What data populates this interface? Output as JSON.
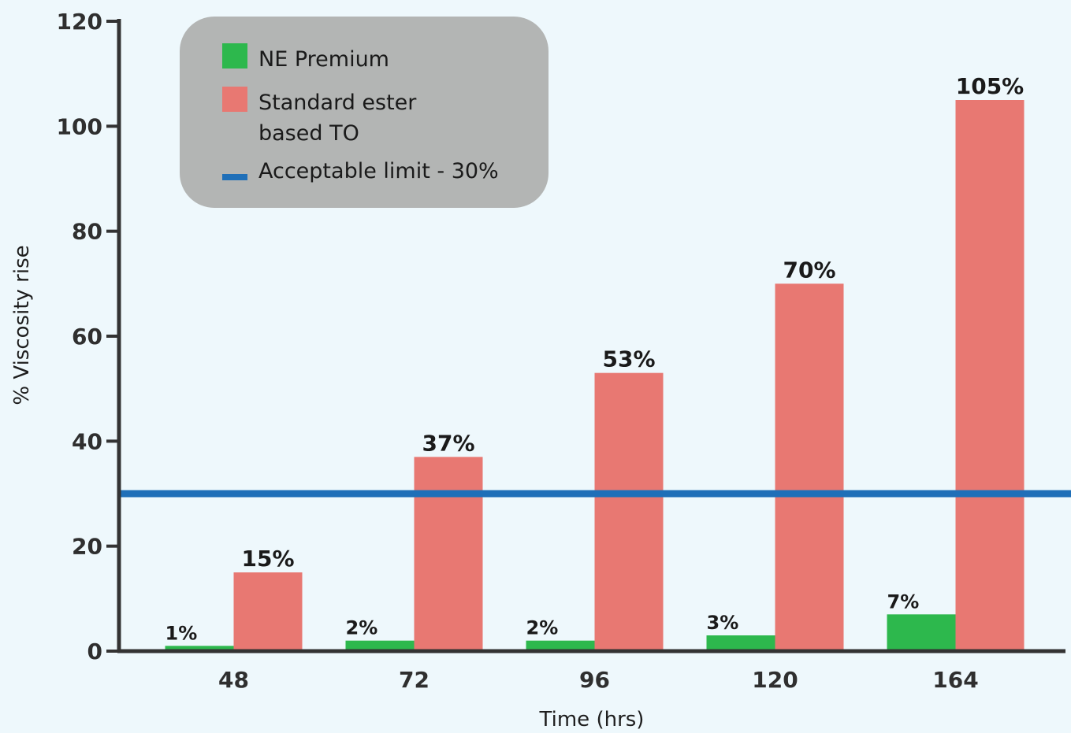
{
  "chart_data": {
    "type": "bar",
    "xlabel": "Time (hrs)",
    "ylabel": "% Viscosity rise",
    "categories": [
      "48",
      "72",
      "96",
      "120",
      "164"
    ],
    "ylim": [
      0,
      120
    ],
    "yticks": [
      0,
      20,
      40,
      60,
      80,
      100,
      120
    ],
    "grid": false,
    "legend_position": "top-left",
    "series": [
      {
        "name": "NE Premium",
        "color": "#2db84d",
        "values": [
          1,
          2,
          2,
          3,
          7
        ],
        "value_labels": [
          "1%",
          "2%",
          "2%",
          "3%",
          "7%"
        ]
      },
      {
        "name": "Standard ester based TO",
        "name_lines": [
          "Standard ester",
          "based TO"
        ],
        "color": "#e87872",
        "values": [
          15,
          37,
          53,
          70,
          105
        ],
        "value_labels": [
          "15%",
          "37%",
          "53%",
          "70%",
          "105%"
        ]
      }
    ],
    "reference_line": {
      "name": "Acceptable limit - 30%",
      "value": 30,
      "color": "#1f6fb8"
    },
    "colors": {
      "background": "#eef8fc",
      "axis": "#333333",
      "legend_box": "#b3b5b4"
    }
  }
}
